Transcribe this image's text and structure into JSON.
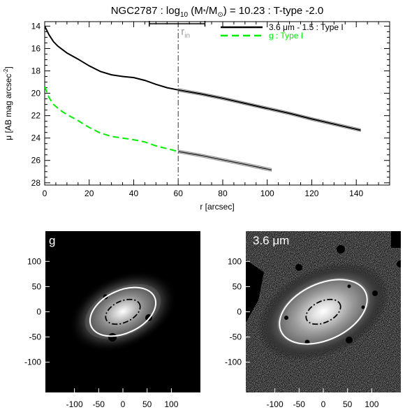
{
  "chart_data": [
    {
      "type": "line",
      "title": "NGC2787 : log",
      "title_sub": "10",
      "title_mid": " (M",
      "title_star": "*",
      "title_slash": "/M",
      "title_sun": "⊙",
      "title_end": ") = 10.23 : T-type -2.0",
      "xlabel": "r [arcsec]",
      "ylabel": "μ [AB mag arcsec",
      "ylabel_sup": "-2",
      "ylabel_end": "]",
      "xlim": [
        0,
        155
      ],
      "ylim": [
        28.2,
        13.6
      ],
      "y_inverted": true,
      "x_ticks": [
        0,
        20,
        40,
        60,
        80,
        100,
        120,
        140
      ],
      "y_ticks": [
        14,
        16,
        18,
        20,
        22,
        24,
        26,
        28
      ],
      "grid": false,
      "legend_position": "top-right",
      "annotations": {
        "r_in_label": "r",
        "r_in_sub": "in",
        "r_in_x": 60,
        "r_in_bar": [
          47,
          72
        ]
      },
      "series": [
        {
          "name": "3.6 μm - 1.5 : Type I",
          "color": "#000000",
          "style": "solid",
          "x": [
            0,
            2,
            4,
            6,
            8,
            10,
            15,
            20,
            25,
            30,
            35,
            40,
            45,
            50,
            55,
            60,
            70,
            80,
            90,
            100,
            110,
            120,
            130,
            142
          ],
          "y": [
            14.0,
            14.8,
            15.4,
            15.8,
            16.1,
            16.4,
            16.95,
            17.55,
            18.05,
            18.35,
            18.5,
            18.6,
            18.85,
            19.2,
            19.5,
            19.7,
            20.05,
            20.45,
            20.9,
            21.35,
            21.8,
            22.3,
            22.75,
            23.3
          ]
        },
        {
          "name": "g : Type I",
          "color": "#00ee00",
          "style": "dashed",
          "x": [
            0,
            2,
            4,
            6,
            8,
            10,
            15,
            20,
            25,
            30,
            35,
            40,
            45,
            50,
            55,
            60,
            70,
            80,
            90,
            102
          ],
          "y": [
            19.4,
            20.4,
            21.0,
            21.35,
            21.65,
            21.9,
            22.45,
            23.05,
            23.55,
            23.85,
            24.0,
            24.15,
            24.35,
            24.7,
            24.95,
            25.2,
            25.55,
            25.95,
            26.35,
            26.85
          ]
        }
      ]
    },
    {
      "type": "image",
      "label": "g",
      "x_ticks": [
        -100,
        -50,
        0,
        50,
        100
      ],
      "y_ticks": [
        100,
        50,
        0,
        -50,
        -100
      ],
      "xlim": [
        -160,
        160
      ],
      "ylim": [
        -160,
        160
      ],
      "outer_ellipse": {
        "cx": 0,
        "cy": 0,
        "rx": 72,
        "ry": 44,
        "angle_deg": 25
      },
      "inner_ellipse": {
        "cx": 0,
        "cy": 0,
        "rx": 38,
        "ry": 22,
        "angle_deg": 25
      },
      "background_color": "#000000"
    },
    {
      "type": "image",
      "label": "3.6 μm",
      "x_ticks": [
        -100,
        -50,
        0,
        50,
        100
      ],
      "y_ticks": [
        100,
        50,
        0,
        -50,
        -100
      ],
      "xlim": [
        -160,
        160
      ],
      "ylim": [
        -160,
        160
      ],
      "outer_ellipse": {
        "cx": 0,
        "cy": 0,
        "rx": 96,
        "ry": 58,
        "angle_deg": 25
      },
      "inner_ellipse": {
        "cx": 0,
        "cy": 0,
        "rx": 38,
        "ry": 22,
        "angle_deg": 25
      },
      "background_color": "#0a0a0a"
    }
  ]
}
